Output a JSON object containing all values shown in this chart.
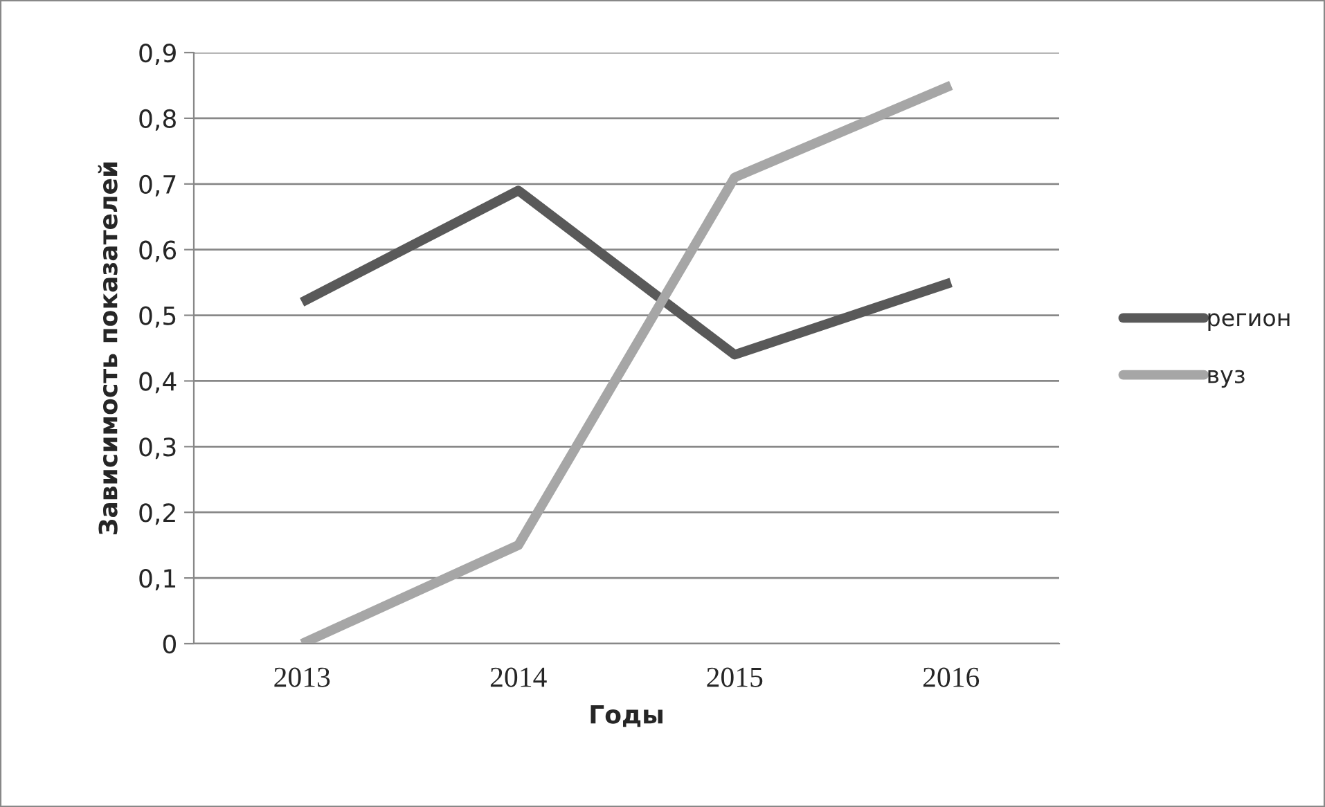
{
  "chart_data": {
    "type": "line",
    "xlabel": "Годы",
    "ylabel": "Зависимость показателей",
    "categories": [
      "2013",
      "2014",
      "2015",
      "2016"
    ],
    "series": [
      {
        "name": "регион",
        "color": "#595959",
        "values": [
          0.52,
          0.69,
          0.44,
          0.55
        ]
      },
      {
        "name": "вуз",
        "color": "#a6a6a6",
        "values": [
          0,
          0.15,
          0.71,
          0.85
        ]
      }
    ],
    "ylim": [
      0,
      0.9
    ],
    "yticks": [
      {
        "value": 0,
        "label": "0"
      },
      {
        "value": 0.1,
        "label": "0,1"
      },
      {
        "value": 0.2,
        "label": "0,2"
      },
      {
        "value": 0.3,
        "label": "0,3"
      },
      {
        "value": 0.4,
        "label": "0,4"
      },
      {
        "value": 0.5,
        "label": "0,5"
      },
      {
        "value": 0.6,
        "label": "0,6"
      },
      {
        "value": 0.7,
        "label": "0,7"
      },
      {
        "value": 0.8,
        "label": "0,8"
      },
      {
        "value": 0.9,
        "label": "0,9"
      }
    ],
    "grid": "y",
    "legend": "right",
    "marker": "none",
    "line_style": "solid"
  }
}
